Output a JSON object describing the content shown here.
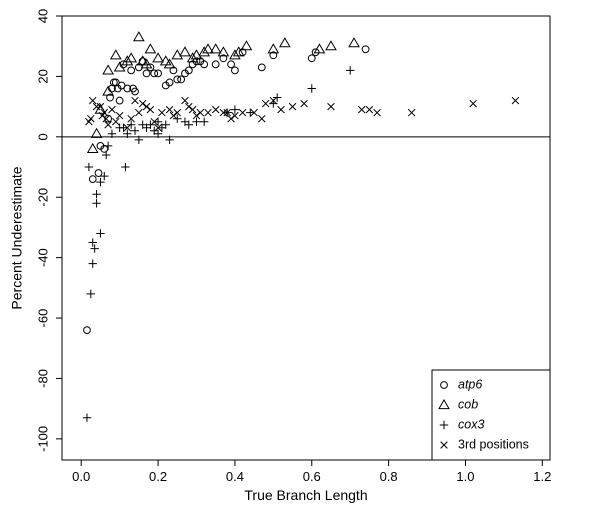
{
  "chart_data": {
    "type": "scatter",
    "xlabel": "True Branch Length",
    "ylabel": "Percent Underestimate",
    "xlim": [
      -0.05,
      1.22
    ],
    "ylim": [
      -107,
      40
    ],
    "xticks": [
      "0.0",
      "0.2",
      "0.4",
      "0.6",
      "0.8",
      "1.0",
      "1.2"
    ],
    "xtick_values": [
      0,
      0.2,
      0.4,
      0.6,
      0.8,
      1.0,
      1.2
    ],
    "yticks": [
      "40",
      "20",
      "0",
      "-20",
      "-40",
      "-60",
      "-80",
      "-100"
    ],
    "ytick_values": [
      40,
      20,
      0,
      -20,
      -40,
      -60,
      -80,
      -100
    ],
    "reference_line_y": 0,
    "grid": false,
    "legend_position": "bottom-right",
    "series": [
      {
        "name": "atp6",
        "marker": "circle",
        "points": [
          [
            0.015,
            -64
          ],
          [
            0.03,
            -14
          ],
          [
            0.045,
            -12
          ],
          [
            0.05,
            -3
          ],
          [
            0.06,
            -4
          ],
          [
            0.07,
            6
          ],
          [
            0.075,
            13
          ],
          [
            0.08,
            16
          ],
          [
            0.085,
            18
          ],
          [
            0.09,
            18
          ],
          [
            0.095,
            16
          ],
          [
            0.1,
            12
          ],
          [
            0.105,
            17
          ],
          [
            0.11,
            24
          ],
          [
            0.12,
            16
          ],
          [
            0.13,
            22
          ],
          [
            0.135,
            16
          ],
          [
            0.14,
            15
          ],
          [
            0.15,
            23
          ],
          [
            0.16,
            25
          ],
          [
            0.17,
            21
          ],
          [
            0.18,
            23
          ],
          [
            0.19,
            21
          ],
          [
            0.2,
            21
          ],
          [
            0.22,
            17
          ],
          [
            0.23,
            18
          ],
          [
            0.24,
            22
          ],
          [
            0.25,
            19
          ],
          [
            0.26,
            19
          ],
          [
            0.27,
            21
          ],
          [
            0.28,
            22
          ],
          [
            0.29,
            24
          ],
          [
            0.3,
            25
          ],
          [
            0.31,
            25
          ],
          [
            0.32,
            24
          ],
          [
            0.35,
            24
          ],
          [
            0.37,
            26
          ],
          [
            0.39,
            24
          ],
          [
            0.4,
            22
          ],
          [
            0.42,
            28
          ],
          [
            0.47,
            23
          ],
          [
            0.5,
            27
          ],
          [
            0.6,
            26
          ],
          [
            0.61,
            28
          ],
          [
            0.74,
            29
          ]
        ]
      },
      {
        "name": "cob",
        "marker": "triangle",
        "points": [
          [
            0.03,
            -4
          ],
          [
            0.04,
            1
          ],
          [
            0.05,
            9
          ],
          [
            0.07,
            15
          ],
          [
            0.07,
            22
          ],
          [
            0.09,
            27
          ],
          [
            0.1,
            23
          ],
          [
            0.12,
            25
          ],
          [
            0.13,
            26
          ],
          [
            0.15,
            33
          ],
          [
            0.16,
            25
          ],
          [
            0.17,
            24
          ],
          [
            0.18,
            29
          ],
          [
            0.2,
            26
          ],
          [
            0.22,
            25
          ],
          [
            0.23,
            24
          ],
          [
            0.25,
            27
          ],
          [
            0.27,
            28
          ],
          [
            0.29,
            26
          ],
          [
            0.3,
            27
          ],
          [
            0.32,
            28
          ],
          [
            0.33,
            29
          ],
          [
            0.35,
            29
          ],
          [
            0.37,
            28
          ],
          [
            0.4,
            27
          ],
          [
            0.41,
            28
          ],
          [
            0.43,
            30
          ],
          [
            0.5,
            29
          ],
          [
            0.53,
            31
          ],
          [
            0.62,
            29
          ],
          [
            0.65,
            30
          ],
          [
            0.71,
            31
          ]
        ]
      },
      {
        "name": "cox3",
        "marker": "plus",
        "points": [
          [
            0.015,
            -93
          ],
          [
            0.02,
            -10
          ],
          [
            0.025,
            -52
          ],
          [
            0.03,
            -35
          ],
          [
            0.03,
            -42
          ],
          [
            0.035,
            -37
          ],
          [
            0.04,
            -22
          ],
          [
            0.04,
            -19
          ],
          [
            0.05,
            -32
          ],
          [
            0.05,
            -15
          ],
          [
            0.06,
            -13
          ],
          [
            0.065,
            -6
          ],
          [
            0.07,
            -3
          ],
          [
            0.08,
            1
          ],
          [
            0.1,
            3
          ],
          [
            0.11,
            3
          ],
          [
            0.115,
            -10
          ],
          [
            0.12,
            1
          ],
          [
            0.13,
            4
          ],
          [
            0.14,
            2
          ],
          [
            0.15,
            -1
          ],
          [
            0.16,
            4
          ],
          [
            0.17,
            3
          ],
          [
            0.18,
            4
          ],
          [
            0.19,
            2
          ],
          [
            0.2,
            5
          ],
          [
            0.2,
            1
          ],
          [
            0.21,
            3
          ],
          [
            0.22,
            4
          ],
          [
            0.23,
            -1
          ],
          [
            0.25,
            6
          ],
          [
            0.27,
            5
          ],
          [
            0.28,
            4
          ],
          [
            0.3,
            5
          ],
          [
            0.32,
            5
          ],
          [
            0.38,
            8
          ],
          [
            0.4,
            9
          ],
          [
            0.44,
            8
          ],
          [
            0.5,
            11
          ],
          [
            0.51,
            13
          ],
          [
            0.6,
            16
          ],
          [
            0.7,
            22
          ]
        ]
      },
      {
        "name": "3rd positions",
        "marker": "x",
        "points": [
          [
            0.02,
            5
          ],
          [
            0.025,
            6
          ],
          [
            0.03,
            12
          ],
          [
            0.04,
            10
          ],
          [
            0.05,
            10
          ],
          [
            0.055,
            7
          ],
          [
            0.06,
            8
          ],
          [
            0.065,
            6
          ],
          [
            0.07,
            4
          ],
          [
            0.08,
            9
          ],
          [
            0.09,
            5
          ],
          [
            0.1,
            7
          ],
          [
            0.12,
            3
          ],
          [
            0.13,
            6
          ],
          [
            0.14,
            12
          ],
          [
            0.15,
            8
          ],
          [
            0.16,
            11
          ],
          [
            0.17,
            10
          ],
          [
            0.18,
            9
          ],
          [
            0.19,
            5
          ],
          [
            0.2,
            3
          ],
          [
            0.21,
            8
          ],
          [
            0.23,
            9
          ],
          [
            0.24,
            7
          ],
          [
            0.25,
            8
          ],
          [
            0.27,
            12
          ],
          [
            0.28,
            10
          ],
          [
            0.29,
            9
          ],
          [
            0.3,
            7
          ],
          [
            0.31,
            8
          ],
          [
            0.33,
            8
          ],
          [
            0.35,
            9
          ],
          [
            0.37,
            8
          ],
          [
            0.38,
            8
          ],
          [
            0.39,
            6
          ],
          [
            0.4,
            7
          ],
          [
            0.42,
            8
          ],
          [
            0.45,
            8
          ],
          [
            0.47,
            6
          ],
          [
            0.48,
            11
          ],
          [
            0.5,
            12
          ],
          [
            0.52,
            9
          ],
          [
            0.55,
            10
          ],
          [
            0.58,
            11
          ],
          [
            0.65,
            10
          ],
          [
            0.73,
            9
          ],
          [
            0.75,
            9
          ],
          [
            0.77,
            8
          ],
          [
            0.86,
            8
          ],
          [
            1.02,
            11
          ],
          [
            1.13,
            12
          ]
        ]
      }
    ]
  }
}
